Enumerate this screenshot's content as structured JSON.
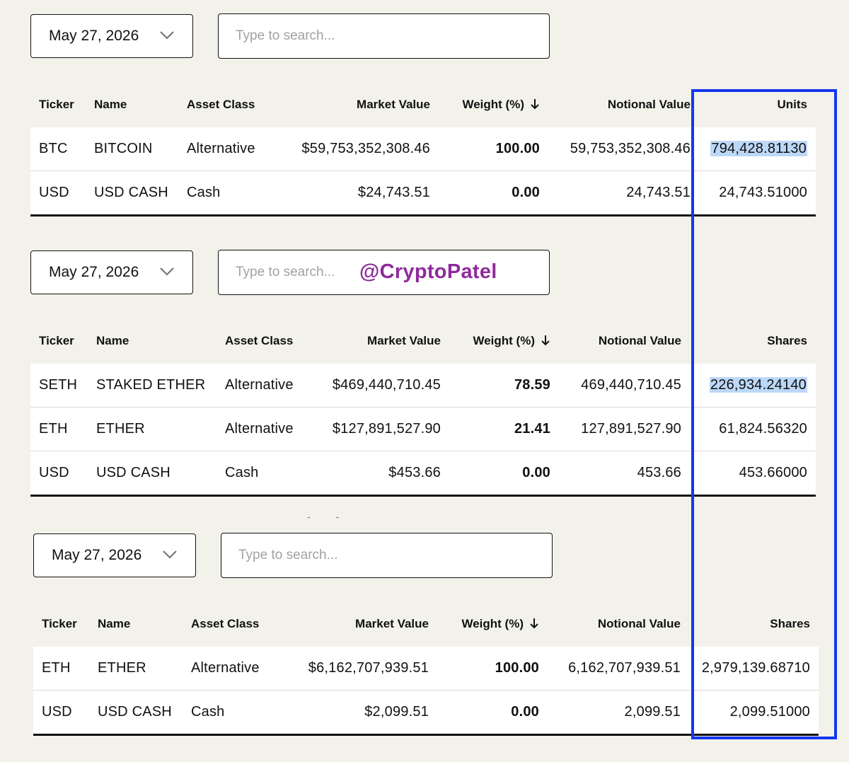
{
  "panels": [
    {
      "date": "May 27, 2026",
      "search_placeholder": "Type to search...",
      "headers": [
        "Ticker",
        "Name",
        "Asset Class",
        "Market Value",
        "Weight (%)",
        "Notional Value",
        "Units"
      ],
      "rows": [
        [
          "BTC",
          "BITCOIN",
          "Alternative",
          "$59,753,352,308.46",
          "100.00",
          "59,753,352,308.46",
          "794,428.81130"
        ],
        [
          "USD",
          "USD CASH",
          "Cash",
          "$24,743.51",
          "0.00",
          "24,743.51",
          "24,743.51000"
        ]
      ]
    },
    {
      "date": "May 27, 2026",
      "search_placeholder": "Type to search...",
      "watermark": "@CryptoPatel",
      "headers": [
        "Ticker",
        "Name",
        "Asset Class",
        "Market Value",
        "Weight (%)",
        "Notional Value",
        "Shares"
      ],
      "rows": [
        [
          "SETH",
          "STAKED ETHER",
          "Alternative",
          "$469,440,710.45",
          "78.59",
          "469,440,710.45",
          "226,934.24140"
        ],
        [
          "ETH",
          "ETHER",
          "Alternative",
          "$127,891,527.90",
          "21.41",
          "127,891,527.90",
          "61,824.56320"
        ],
        [
          "USD",
          "USD CASH",
          "Cash",
          "$453.66",
          "0.00",
          "453.66",
          "453.66000"
        ]
      ]
    },
    {
      "date": "May 27, 2026",
      "search_placeholder": "Type to search...",
      "headers": [
        "Ticker",
        "Name",
        "Asset Class",
        "Market Value",
        "Weight (%)",
        "Notional Value",
        "Shares"
      ],
      "rows": [
        [
          "ETH",
          "ETHER",
          "Alternative",
          "$6,162,707,939.51",
          "100.00",
          "6,162,707,939.51",
          "2,979,139.68710"
        ],
        [
          "USD",
          "USD CASH",
          "Cash",
          "$2,099.51",
          "0.00",
          "2,099.51",
          "2,099.51000"
        ]
      ]
    }
  ],
  "colors": {
    "background": "#f3f2ea",
    "highlight": "#bcd8f7",
    "annotation_box": "#1536f0",
    "watermark": "#8f2a9c"
  },
  "icons": {
    "date_dropdown": "chevron-down-icon",
    "sort": "arrow-down-icon"
  }
}
